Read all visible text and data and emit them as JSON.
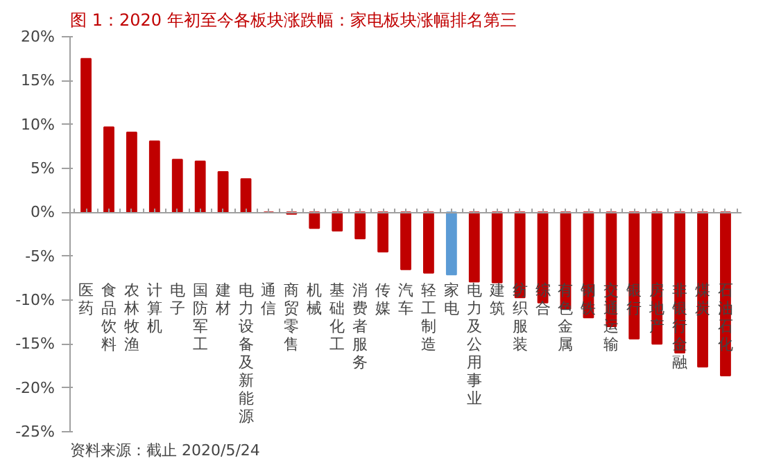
{
  "chart_data": {
    "type": "bar",
    "title": "图 1：2020 年初至今各板块涨跌幅：家电板块涨幅排名第三",
    "categories": [
      "医药",
      "食品饮料",
      "农林牧渔",
      "计算机",
      "电子",
      "国防军工",
      "建材",
      "电力设备及新能源",
      "通信",
      "商贸零售",
      "机械",
      "基础化工",
      "消费者服务",
      "传媒",
      "汽车",
      "轻工制造",
      "家电",
      "电力及公用事业",
      "建筑",
      "纺织服装",
      "综合",
      "有色金属",
      "钢铁",
      "交通运输",
      "银行",
      "房地产",
      "非银行金融",
      "煤炭",
      "石油石化"
    ],
    "values": [
      17.5,
      9.7,
      9.1,
      8.1,
      6.0,
      5.8,
      4.6,
      3.8,
      0.0,
      -0.2,
      -1.8,
      -2.1,
      -3.0,
      -4.5,
      -6.5,
      -6.9,
      -7.1,
      -7.9,
      -8.0,
      -9.7,
      -10.3,
      -11.0,
      -12.0,
      -13.0,
      -14.4,
      -15.0,
      -16.0,
      -17.6,
      -18.6
    ],
    "colors": [
      "#c00000",
      "#c00000",
      "#c00000",
      "#c00000",
      "#c00000",
      "#c00000",
      "#c00000",
      "#c00000",
      "#c00000",
      "#c00000",
      "#c00000",
      "#c00000",
      "#c00000",
      "#c00000",
      "#c00000",
      "#c00000",
      "#5b9bd5",
      "#c00000",
      "#c00000",
      "#c00000",
      "#c00000",
      "#c00000",
      "#c00000",
      "#c00000",
      "#c00000",
      "#c00000",
      "#c00000",
      "#c00000",
      "#c00000"
    ],
    "ylim": [
      -25,
      20
    ],
    "yticks": [
      {
        "value": -25,
        "label": "-25%"
      },
      {
        "value": -20,
        "label": "-20%"
      },
      {
        "value": -15,
        "label": "-15%"
      },
      {
        "value": -10,
        "label": "-10%"
      },
      {
        "value": -5,
        "label": "-5%"
      },
      {
        "value": 0,
        "label": "0%"
      },
      {
        "value": 5,
        "label": "5%"
      },
      {
        "value": 10,
        "label": "10%"
      },
      {
        "value": 15,
        "label": "15%"
      },
      {
        "value": 20,
        "label": "20%"
      }
    ],
    "annotations": [
      "资料来源：截止 2020/5/24"
    ]
  }
}
